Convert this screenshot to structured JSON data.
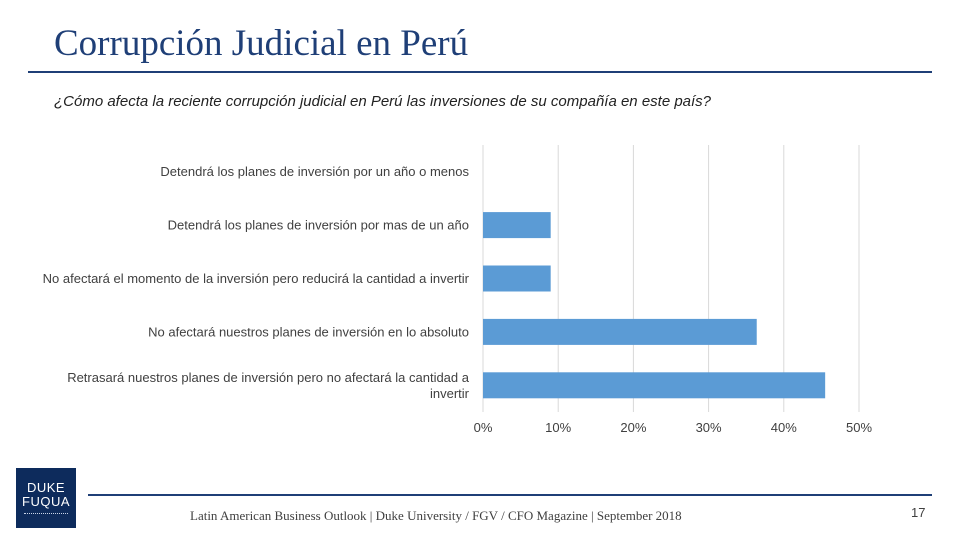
{
  "slide": {
    "title": "Corrupción Judicial en Perú",
    "question": "¿Cómo afecta la reciente corrupción judicial en Perú las inversiones de su compañía en este país?",
    "footer": "Latin American Business Outlook | Duke University / FGV / CFO Magazine | September 2018",
    "page_number": "17",
    "logo": {
      "line1": "DUKE",
      "line2": "FUQUA"
    }
  },
  "chart_data": {
    "type": "bar",
    "orientation": "horizontal",
    "title": "",
    "xlabel": "",
    "ylabel": "",
    "categories": [
      [
        "Detendrá los planes de inversión por un año o menos"
      ],
      [
        "Detendrá los planes de inversión por mas de un año"
      ],
      [
        "No afectará el momento de la inversión pero reducirá la cantidad a invertir"
      ],
      [
        "No afectará nuestros planes de inversión en lo absoluto"
      ],
      [
        "Retrasará nuestros planes de inversión pero no afectará la cantidad a",
        "invertir"
      ]
    ],
    "values": [
      0,
      9,
      9,
      36.4,
      45.5
    ],
    "xlim": [
      0,
      50
    ],
    "x_ticks": [
      "0%",
      "10%",
      "20%",
      "30%",
      "40%",
      "50%"
    ],
    "grid": true,
    "colors": {
      "bar": "#5b9bd5",
      "grid": "#d9d9d9"
    }
  }
}
